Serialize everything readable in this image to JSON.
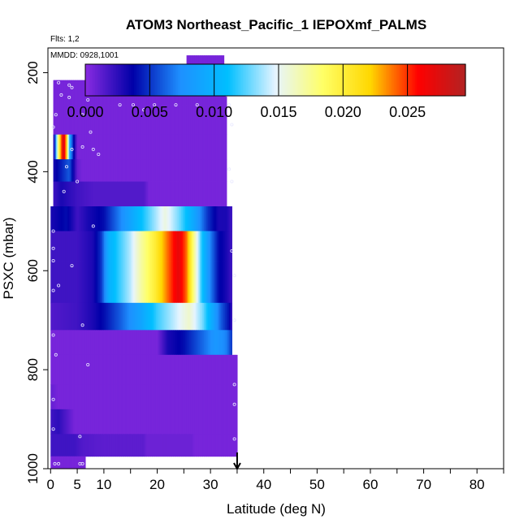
{
  "chart_data": {
    "type": "heatmap",
    "title": "ATOM3 Northeast_Pacific_1 IEPOXmf_PALMS",
    "flights_note": "Flts: 1,2",
    "date_note": "MMDD: 0928,1001",
    "xlabel": "Latitude (deg N)",
    "ylabel": "PSXC (mbar)",
    "xlim": [
      -0.5,
      85
    ],
    "ylim": [
      1000,
      150
    ],
    "y_reversed": true,
    "grid": false,
    "x_ticks": [
      0,
      5,
      10,
      20,
      30,
      40,
      50,
      60,
      70,
      80
    ],
    "x_tick_labels": [
      "0",
      "5",
      "10",
      "20",
      "30",
      "40",
      "50",
      "60",
      "70",
      "80"
    ],
    "x_minor_ticks": [
      0,
      5,
      10,
      15,
      20,
      25,
      30,
      35,
      40,
      45,
      50,
      55,
      60,
      65,
      70,
      75,
      80,
      85
    ],
    "y_ticks": [
      200,
      400,
      600,
      800,
      1000
    ],
    "y_tick_labels": [
      "200",
      "400",
      "600",
      "800",
      "1000"
    ],
    "marker_latitude": 35,
    "colorbar": {
      "range": [
        0,
        0.0295
      ],
      "ticks": [
        0.0,
        0.005,
        0.01,
        0.015,
        0.02,
        0.025
      ],
      "tick_labels": [
        "0.000",
        "0.005",
        "0.010",
        "0.015",
        "0.020",
        "0.025"
      ],
      "colors": [
        "#8a2be2",
        "#0000a8",
        "#1e90ff",
        "#00bfff",
        "#e6f4ff",
        "#ffff66",
        "#ffd700",
        "#ff0000",
        "#b22222"
      ]
    },
    "background_value": 0.0005,
    "bands": [
      {
        "p": [
          165,
          215
        ],
        "lat": [
          25.5,
          32.5
        ],
        "knots": [
          [
            25.5,
            0.0005
          ],
          [
            32.5,
            0.0005
          ]
        ]
      },
      {
        "p": [
          215,
          265
        ],
        "lat": [
          0.5,
          33
        ],
        "knots": [
          [
            0.5,
            0.0005
          ],
          [
            33,
            0.0005
          ]
        ]
      },
      {
        "p": [
          265,
          325
        ],
        "lat": [
          0.5,
          33
        ],
        "knots": [
          [
            0.5,
            0.0005
          ],
          [
            33,
            0.0005
          ]
        ]
      },
      {
        "p": [
          325,
          375
        ],
        "lat": [
          0.5,
          33
        ],
        "knots": [
          [
            0.5,
            0.002
          ],
          [
            0.8,
            0.004
          ],
          [
            1.2,
            0.015
          ],
          [
            1.8,
            0.022
          ],
          [
            2.4,
            0.028
          ],
          [
            3.0,
            0.022
          ],
          [
            3.6,
            0.009
          ],
          [
            4.3,
            0.004
          ],
          [
            5.0,
            0.0005
          ],
          [
            33,
            0.0005
          ]
        ]
      },
      {
        "p": [
          375,
          420
        ],
        "lat": [
          0.5,
          33
        ],
        "knots": [
          [
            0.5,
            0.003
          ],
          [
            1.5,
            0.004
          ],
          [
            3.5,
            0.006
          ],
          [
            5.0,
            0.001
          ],
          [
            6.0,
            0.0005
          ],
          [
            33,
            0.0005
          ]
        ]
      },
      {
        "p": [
          420,
          470
        ],
        "lat": [
          0.5,
          33
        ],
        "knots": [
          [
            0.5,
            0.002
          ],
          [
            2.0,
            0.003
          ],
          [
            5.0,
            0.002
          ],
          [
            8.0,
            0.0015
          ],
          [
            17.5,
            0.0015
          ],
          [
            18.5,
            0.0005
          ],
          [
            33,
            0.0005
          ]
        ]
      },
      {
        "p": [
          470,
          520
        ],
        "lat": [
          0.0,
          34
        ],
        "knots": [
          [
            0.0,
            0.003
          ],
          [
            3.0,
            0.004
          ],
          [
            5.0,
            0.002
          ],
          [
            7.0,
            0.003
          ],
          [
            10.0,
            0.004
          ],
          [
            13.0,
            0.007
          ],
          [
            16.0,
            0.01
          ],
          [
            19.5,
            0.0135
          ],
          [
            21.5,
            0.0155
          ],
          [
            24.0,
            0.013
          ],
          [
            27.0,
            0.009
          ],
          [
            29.5,
            0.005
          ],
          [
            31.5,
            0.003
          ],
          [
            33.0,
            0.003
          ],
          [
            34.0,
            0.002
          ]
        ]
      },
      {
        "p": [
          520,
          580
        ],
        "lat": [
          0.0,
          34
        ],
        "knots": [
          [
            0.0,
            0.002
          ],
          [
            5.0,
            0.002
          ],
          [
            8.0,
            0.003
          ],
          [
            9.5,
            0.005
          ],
          [
            11.0,
            0.01
          ],
          [
            13.0,
            0.012
          ],
          [
            15.0,
            0.014
          ],
          [
            17.0,
            0.017
          ],
          [
            19.5,
            0.02
          ],
          [
            22.0,
            0.024
          ],
          [
            24.0,
            0.027
          ],
          [
            25.5,
            0.024
          ],
          [
            27.0,
            0.017
          ],
          [
            28.5,
            0.011
          ],
          [
            30.0,
            0.007
          ],
          [
            31.5,
            0.004
          ],
          [
            33.0,
            0.003
          ],
          [
            34.0,
            0.002
          ]
        ]
      },
      {
        "p": [
          580,
          665
        ],
        "lat": [
          0.0,
          34
        ],
        "knots": [
          [
            0.0,
            0.002
          ],
          [
            5.0,
            0.002
          ],
          [
            8.0,
            0.003
          ],
          [
            9.5,
            0.005
          ],
          [
            11.0,
            0.01
          ],
          [
            13.0,
            0.012
          ],
          [
            15.0,
            0.014
          ],
          [
            17.0,
            0.017
          ],
          [
            19.5,
            0.02
          ],
          [
            22.0,
            0.024
          ],
          [
            24.0,
            0.027
          ],
          [
            25.5,
            0.024
          ],
          [
            27.0,
            0.017
          ],
          [
            28.5,
            0.011
          ],
          [
            30.0,
            0.007
          ],
          [
            31.5,
            0.004
          ],
          [
            33.0,
            0.003
          ],
          [
            34.0,
            0.002
          ]
        ]
      },
      {
        "p": [
          665,
          720
        ],
        "lat": [
          0.0,
          34
        ],
        "knots": [
          [
            0.0,
            0.0015
          ],
          [
            5.0,
            0.002
          ],
          [
            8.0,
            0.003
          ],
          [
            10.0,
            0.004
          ],
          [
            13.0,
            0.006
          ],
          [
            17.0,
            0.009
          ],
          [
            20.0,
            0.012
          ],
          [
            23.0,
            0.014
          ],
          [
            26.0,
            0.016
          ],
          [
            28.5,
            0.013
          ],
          [
            30.5,
            0.009
          ],
          [
            32.0,
            0.006
          ],
          [
            33.5,
            0.004
          ],
          [
            34.0,
            0.002
          ]
        ]
      },
      {
        "p": [
          720,
          770
        ],
        "lat": [
          0.0,
          34
        ],
        "knots": [
          [
            0.0,
            0.0005
          ],
          [
            20.0,
            0.0005
          ],
          [
            22.0,
            0.003
          ],
          [
            25.0,
            0.004
          ],
          [
            28.0,
            0.006
          ],
          [
            31.0,
            0.008
          ],
          [
            33.0,
            0.007
          ],
          [
            34.0,
            0.005
          ]
        ]
      },
      {
        "p": [
          770,
          830
        ],
        "lat": [
          0.0,
          35
        ],
        "knots": [
          [
            0.0,
            0.0005
          ],
          [
            35,
            0.0005
          ]
        ]
      },
      {
        "p": [
          830,
          880
        ],
        "lat": [
          0.0,
          35
        ],
        "knots": [
          [
            0.0,
            0.001
          ],
          [
            1.5,
            0.0005
          ],
          [
            35,
            0.0005
          ]
        ]
      },
      {
        "p": [
          880,
          930
        ],
        "lat": [
          0.0,
          35
        ],
        "knots": [
          [
            0.0,
            0.002
          ],
          [
            1.5,
            0.0025
          ],
          [
            3.0,
            0.0015
          ],
          [
            4.5,
            0.0005
          ],
          [
            35,
            0.0005
          ]
        ]
      },
      {
        "p": [
          930,
          975
        ],
        "lat": [
          0.0,
          35
        ],
        "knots": [
          [
            0.0,
            0.002
          ],
          [
            4.5,
            0.002
          ],
          [
            6.0,
            0.0015
          ],
          [
            10.0,
            0.0012
          ],
          [
            17.5,
            0.0012
          ],
          [
            18.0,
            0.0008
          ],
          [
            26.5,
            0.0008
          ],
          [
            27.0,
            0.0005
          ],
          [
            35,
            0.0005
          ]
        ]
      },
      {
        "p": [
          975,
          1000
        ],
        "lat": [
          0.0,
          6.5
        ],
        "knots": [
          [
            0.0,
            0.0005
          ],
          [
            6.5,
            0.0005
          ]
        ]
      }
    ],
    "points": [
      [
        26,
        190
      ],
      [
        26.8,
        190
      ],
      [
        27.5,
        190
      ],
      [
        28.5,
        200
      ],
      [
        29.2,
        200
      ],
      [
        30,
        200
      ],
      [
        30.7,
        200
      ],
      [
        31.4,
        200
      ],
      [
        32,
        200
      ],
      [
        1.5,
        220
      ],
      [
        3.5,
        225
      ],
      [
        4,
        230
      ],
      [
        9,
        235
      ],
      [
        2,
        245
      ],
      [
        3.5,
        250
      ],
      [
        7,
        255
      ],
      [
        9.5,
        240
      ],
      [
        33,
        245
      ],
      [
        33.5,
        265
      ],
      [
        13,
        265
      ],
      [
        15.5,
        265
      ],
      [
        19.5,
        265
      ],
      [
        23.5,
        265
      ],
      [
        27.5,
        265
      ],
      [
        17.5,
        275
      ],
      [
        1,
        285
      ],
      [
        6,
        285
      ],
      [
        0.5,
        310
      ],
      [
        7.5,
        320
      ],
      [
        34,
        305
      ],
      [
        4,
        355
      ],
      [
        6,
        350
      ],
      [
        8,
        355
      ],
      [
        9,
        365
      ],
      [
        3,
        390
      ],
      [
        33.5,
        395
      ],
      [
        34,
        420
      ],
      [
        5,
        420
      ],
      [
        2.5,
        440
      ],
      [
        8,
        510
      ],
      [
        0.5,
        520
      ],
      [
        0.5,
        555
      ],
      [
        0.5,
        580
      ],
      [
        0.5,
        640
      ],
      [
        4,
        590
      ],
      [
        1.5,
        630
      ],
      [
        34,
        560
      ],
      [
        34.5,
        610
      ],
      [
        34.5,
        700
      ],
      [
        0.5,
        730
      ],
      [
        6,
        710
      ],
      [
        7,
        790
      ],
      [
        1,
        770
      ],
      [
        0.5,
        860
      ],
      [
        34.5,
        830
      ],
      [
        34.5,
        870
      ],
      [
        0.5,
        920
      ],
      [
        5.5,
        935
      ],
      [
        34.5,
        940
      ],
      [
        0.8,
        990
      ],
      [
        1.5,
        990
      ],
      [
        5.5,
        990
      ],
      [
        6,
        990
      ]
    ]
  }
}
